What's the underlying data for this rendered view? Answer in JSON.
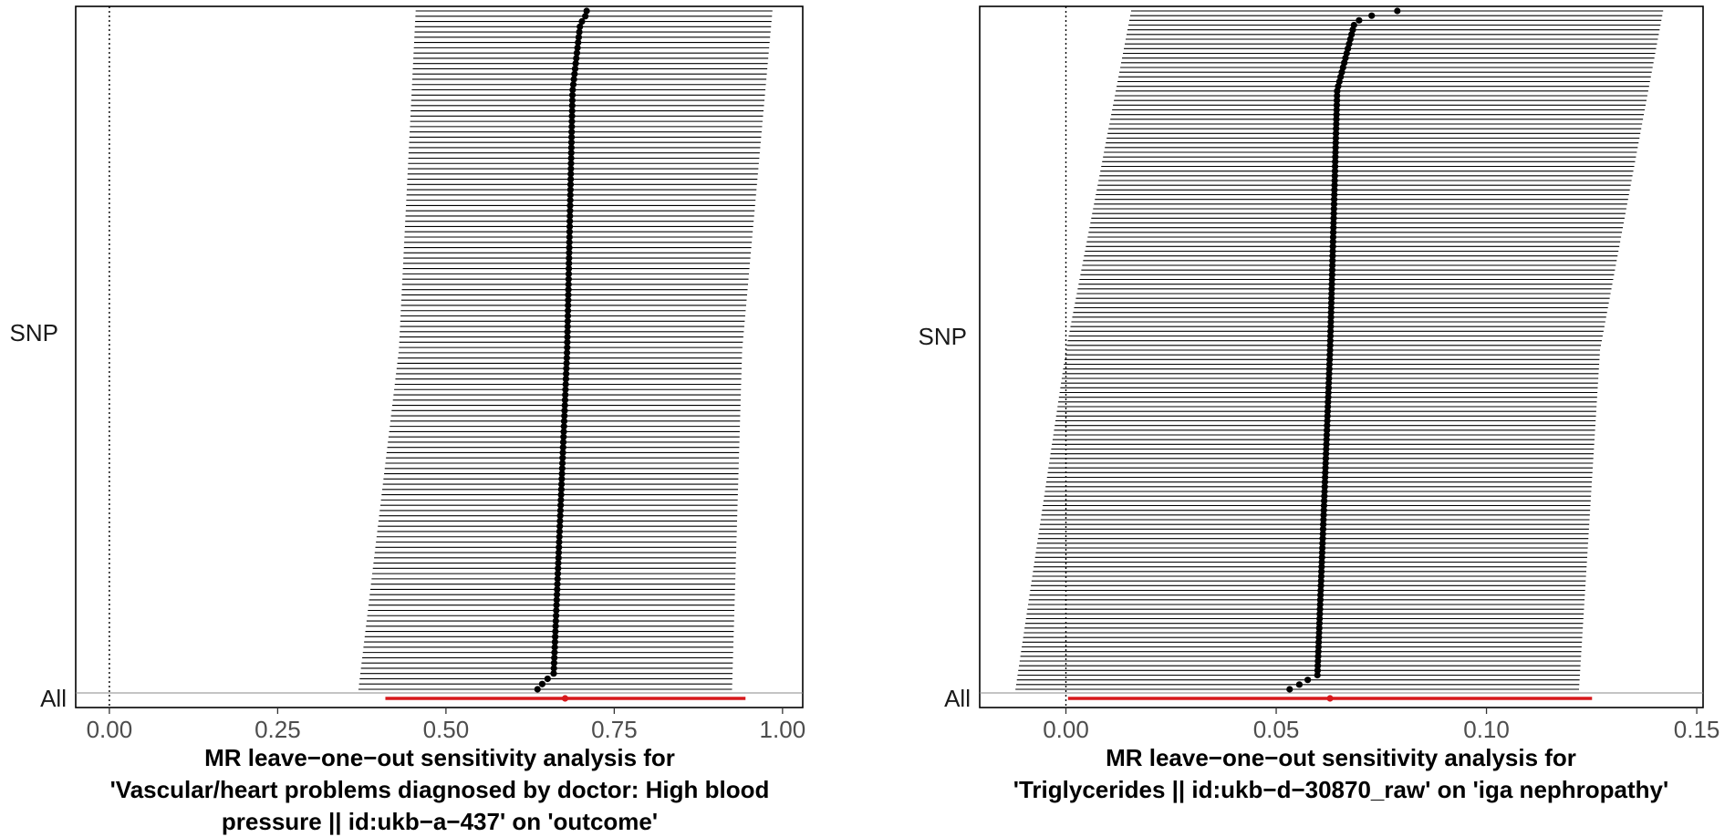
{
  "chart_data": [
    {
      "type": "forest",
      "ylabel": "SNP",
      "y_bottom_label": "All",
      "title": "",
      "xlabel_lines": [
        "MR leave−one−out sensitivity analysis for",
        "'Vascular/heart problems diagnosed by doctor: High blood",
        "pressure || id:ukb−a−437' on 'outcome'"
      ],
      "xlim": [
        -0.05,
        1.03
      ],
      "x_ticks": [
        0,
        0.25,
        0.5,
        0.75,
        1.0
      ],
      "x_tick_labels": [
        "0.00",
        "0.25",
        "0.50",
        "0.75",
        "1.00"
      ],
      "reference_line_x": 0,
      "n_snps": 130,
      "snp_estimates": {
        "top_three": [
          0.709,
          0.707,
          0.702
        ],
        "top_value": 0.699,
        "upper_value": 0.688,
        "mid_value": 0.68,
        "lower_value": 0.66,
        "bottom_three": [
          0.651,
          0.643,
          0.636
        ]
      },
      "snp_ci_lower": {
        "top": 0.455,
        "middle": 0.43,
        "bottom": 0.37
      },
      "snp_ci_upper": {
        "top": 0.985,
        "middle": 0.94,
        "bottom": 0.925
      },
      "all_estimate": {
        "label": "All",
        "b": 0.677,
        "lo": 0.41,
        "hi": 0.945
      },
      "colors": {
        "snp": "#000000",
        "all": "#d7191c",
        "ci": "#000000"
      }
    },
    {
      "type": "forest",
      "ylabel": "SNP",
      "y_bottom_label": "All",
      "title": "",
      "xlabel_lines": [
        "MR leave−one−out sensitivity analysis for",
        "'Triglycerides || id:ukb−d−30870_raw' on 'iga nephropathy'"
      ],
      "xlim": [
        -0.0205,
        0.1515
      ],
      "x_ticks": [
        0,
        0.05,
        0.1,
        0.15
      ],
      "x_tick_labels": [
        "0.00",
        "0.05",
        "0.10",
        "0.15"
      ],
      "reference_line_x": 0,
      "n_snps": 145,
      "snp_estimates": {
        "top_three": [
          0.0788,
          0.0727,
          0.0697
        ],
        "top_value": 0.0685,
        "upper_value": 0.0645,
        "mid_value": 0.0628,
        "lower_value": 0.0598,
        "bottom_three": [
          0.0575,
          0.0555,
          0.0532
        ]
      },
      "snp_ci_lower": {
        "top": 0.0155,
        "middle": 0.0,
        "bottom": -0.012
      },
      "snp_ci_upper": {
        "top": 0.142,
        "middle": 0.127,
        "bottom": 0.122
      },
      "all_estimate": {
        "label": "All",
        "b": 0.0628,
        "lo": 0.0005,
        "hi": 0.1251
      },
      "colors": {
        "snp": "#000000",
        "all": "#d7191c",
        "ci": "#000000"
      }
    }
  ]
}
